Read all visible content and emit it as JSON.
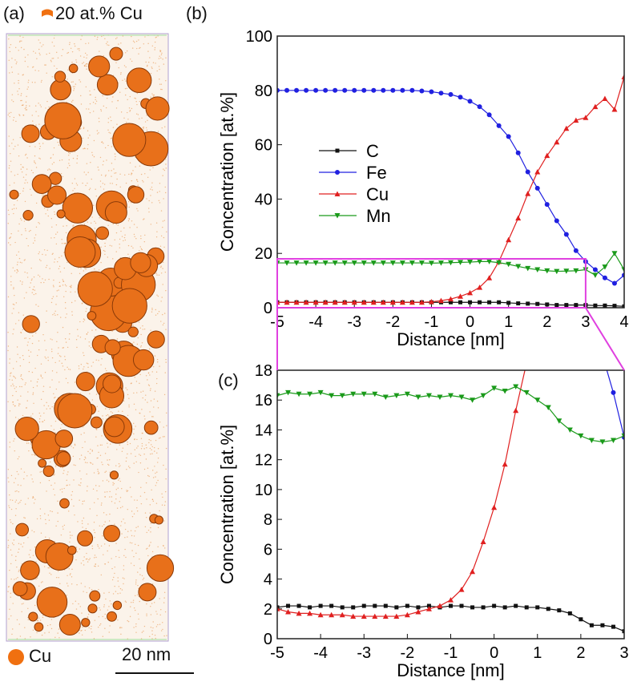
{
  "panel_a": {
    "label": "(a)",
    "legend_isosurface": "20 at.% Cu",
    "legend_atom": "Cu",
    "scale_bar": "20 nm",
    "colors": {
      "particle": "#e8701a",
      "atoms": "#e9a060"
    }
  },
  "chart_data": [
    {
      "panel_label": "(b)",
      "type": "line",
      "xlabel": "Distance [nm]",
      "ylabel": "Concentration [at.%]",
      "xlim": [
        -5,
        4
      ],
      "ylim": [
        0,
        100
      ],
      "xticks": [
        -5,
        -4,
        -3,
        -2,
        -1,
        0,
        1,
        2,
        3,
        4
      ],
      "yticks": [
        0,
        20,
        40,
        60,
        80,
        100
      ],
      "legend_position": "center-left",
      "grid": false,
      "zoom_box": {
        "x": [
          -5,
          3
        ],
        "y": [
          0,
          18
        ],
        "color": "#e040e0"
      },
      "x": [
        -5,
        -4.75,
        -4.5,
        -4.25,
        -4,
        -3.75,
        -3.5,
        -3.25,
        -3,
        -2.75,
        -2.5,
        -2.25,
        -2,
        -1.75,
        -1.5,
        -1.25,
        -1,
        -0.75,
        -0.5,
        -0.25,
        0,
        0.25,
        0.5,
        0.75,
        1,
        1.25,
        1.5,
        1.75,
        2,
        2.25,
        2.5,
        2.75,
        3,
        3.25,
        3.5,
        3.75,
        4
      ],
      "series": [
        {
          "name": "C",
          "color": "#111111",
          "marker": "square",
          "values": [
            2,
            2,
            2,
            2,
            2,
            2,
            2,
            2,
            2,
            2,
            2,
            2,
            2,
            2,
            2,
            2,
            2,
            2,
            2,
            2,
            2,
            2,
            2,
            2,
            1.8,
            1.6,
            1.5,
            1.4,
            1.2,
            1,
            1,
            1,
            1,
            0.8,
            0.8,
            0.7,
            0.5
          ]
        },
        {
          "name": "Fe",
          "color": "#2020e0",
          "marker": "circle",
          "values": [
            80,
            80,
            80,
            80,
            80,
            80,
            80,
            80,
            80,
            80,
            80,
            80,
            80,
            80,
            80,
            79.8,
            79.5,
            79,
            78.5,
            77.5,
            76,
            74,
            71,
            67,
            63,
            57,
            50,
            44,
            38,
            32,
            27,
            21,
            17,
            14,
            11,
            9,
            12
          ]
        },
        {
          "name": "Cu",
          "color": "#e02020",
          "marker": "triangle-up",
          "values": [
            2,
            2,
            2,
            2,
            2,
            2,
            2,
            2,
            2,
            2,
            2,
            2,
            2,
            2,
            2,
            2,
            2.2,
            2.6,
            3.2,
            4.2,
            5.5,
            7.5,
            11,
            17,
            25,
            33,
            42,
            50,
            56,
            61,
            66,
            69,
            70,
            74,
            77,
            73,
            85
          ]
        },
        {
          "name": "Mn",
          "color": "#1a9a1a",
          "marker": "triangle-down",
          "values": [
            16.5,
            16.5,
            16.5,
            16.5,
            16.5,
            16.5,
            16.5,
            16.5,
            16.5,
            16.5,
            16.5,
            16.5,
            16.5,
            16.5,
            16.5,
            16.5,
            16.4,
            16.5,
            16.6,
            16.7,
            16.8,
            17,
            17,
            16.6,
            16,
            15.2,
            14.5,
            14,
            13.6,
            13.4,
            13.5,
            13.6,
            14,
            12,
            15,
            20,
            14
          ]
        }
      ]
    },
    {
      "panel_label": "(c)",
      "type": "line",
      "xlabel": "Distance [nm]",
      "ylabel": "Concentration [at.%]",
      "xlim": [
        -5,
        3
      ],
      "ylim": [
        0,
        18
      ],
      "xticks": [
        -5,
        -4,
        -3,
        -2,
        -1,
        0,
        1,
        2,
        3
      ],
      "yticks": [
        0,
        2,
        4,
        6,
        8,
        10,
        12,
        14,
        16,
        18
      ],
      "grid": false,
      "x": [
        -5,
        -4.75,
        -4.5,
        -4.25,
        -4,
        -3.75,
        -3.5,
        -3.25,
        -3,
        -2.75,
        -2.5,
        -2.25,
        -2,
        -1.75,
        -1.5,
        -1.25,
        -1,
        -0.75,
        -0.5,
        -0.25,
        0,
        0.25,
        0.5,
        0.75,
        1,
        1.25,
        1.5,
        1.75,
        2,
        2.25,
        2.5,
        2.75,
        3
      ],
      "series": [
        {
          "name": "C",
          "color": "#111111",
          "marker": "square",
          "values": [
            2.1,
            2.2,
            2.2,
            2.1,
            2.2,
            2.2,
            2.1,
            2.1,
            2.2,
            2.2,
            2.2,
            2.1,
            2.2,
            2.1,
            2.2,
            2.1,
            2.2,
            2.2,
            2.1,
            2.1,
            2.2,
            2.1,
            2.2,
            2.1,
            2.1,
            2.0,
            1.9,
            1.7,
            1.3,
            0.9,
            0.9,
            0.8,
            0.5
          ]
        },
        {
          "name": "Fe",
          "color": "#2020e0",
          "marker": "circle",
          "values": [
            null,
            null,
            null,
            null,
            null,
            null,
            null,
            null,
            null,
            null,
            null,
            null,
            null,
            null,
            null,
            null,
            null,
            null,
            null,
            null,
            null,
            null,
            null,
            null,
            null,
            null,
            null,
            null,
            null,
            null,
            19,
            16.5,
            13.5
          ]
        },
        {
          "name": "Cu",
          "color": "#e02020",
          "marker": "triangle-up",
          "values": [
            2.0,
            1.8,
            1.7,
            1.7,
            1.6,
            1.6,
            1.6,
            1.5,
            1.5,
            1.5,
            1.5,
            1.5,
            1.6,
            1.8,
            2.0,
            2.2,
            2.6,
            3.3,
            4.5,
            6.5,
            8.8,
            11.7,
            15.3,
            18.5,
            null,
            null,
            null,
            null,
            null,
            null,
            null,
            null,
            null
          ]
        },
        {
          "name": "Mn",
          "color": "#1a9a1a",
          "marker": "triangle-down",
          "values": [
            16.3,
            16.5,
            16.4,
            16.4,
            16.5,
            16.3,
            16.3,
            16.4,
            16.4,
            16.4,
            16.2,
            16.3,
            16.4,
            16.2,
            16.3,
            16.2,
            16.3,
            16.2,
            16.0,
            16.3,
            16.8,
            16.6,
            16.9,
            16.5,
            16.0,
            15.5,
            14.6,
            14.0,
            13.6,
            13.3,
            13.2,
            13.3,
            13.6
          ]
        }
      ]
    }
  ]
}
